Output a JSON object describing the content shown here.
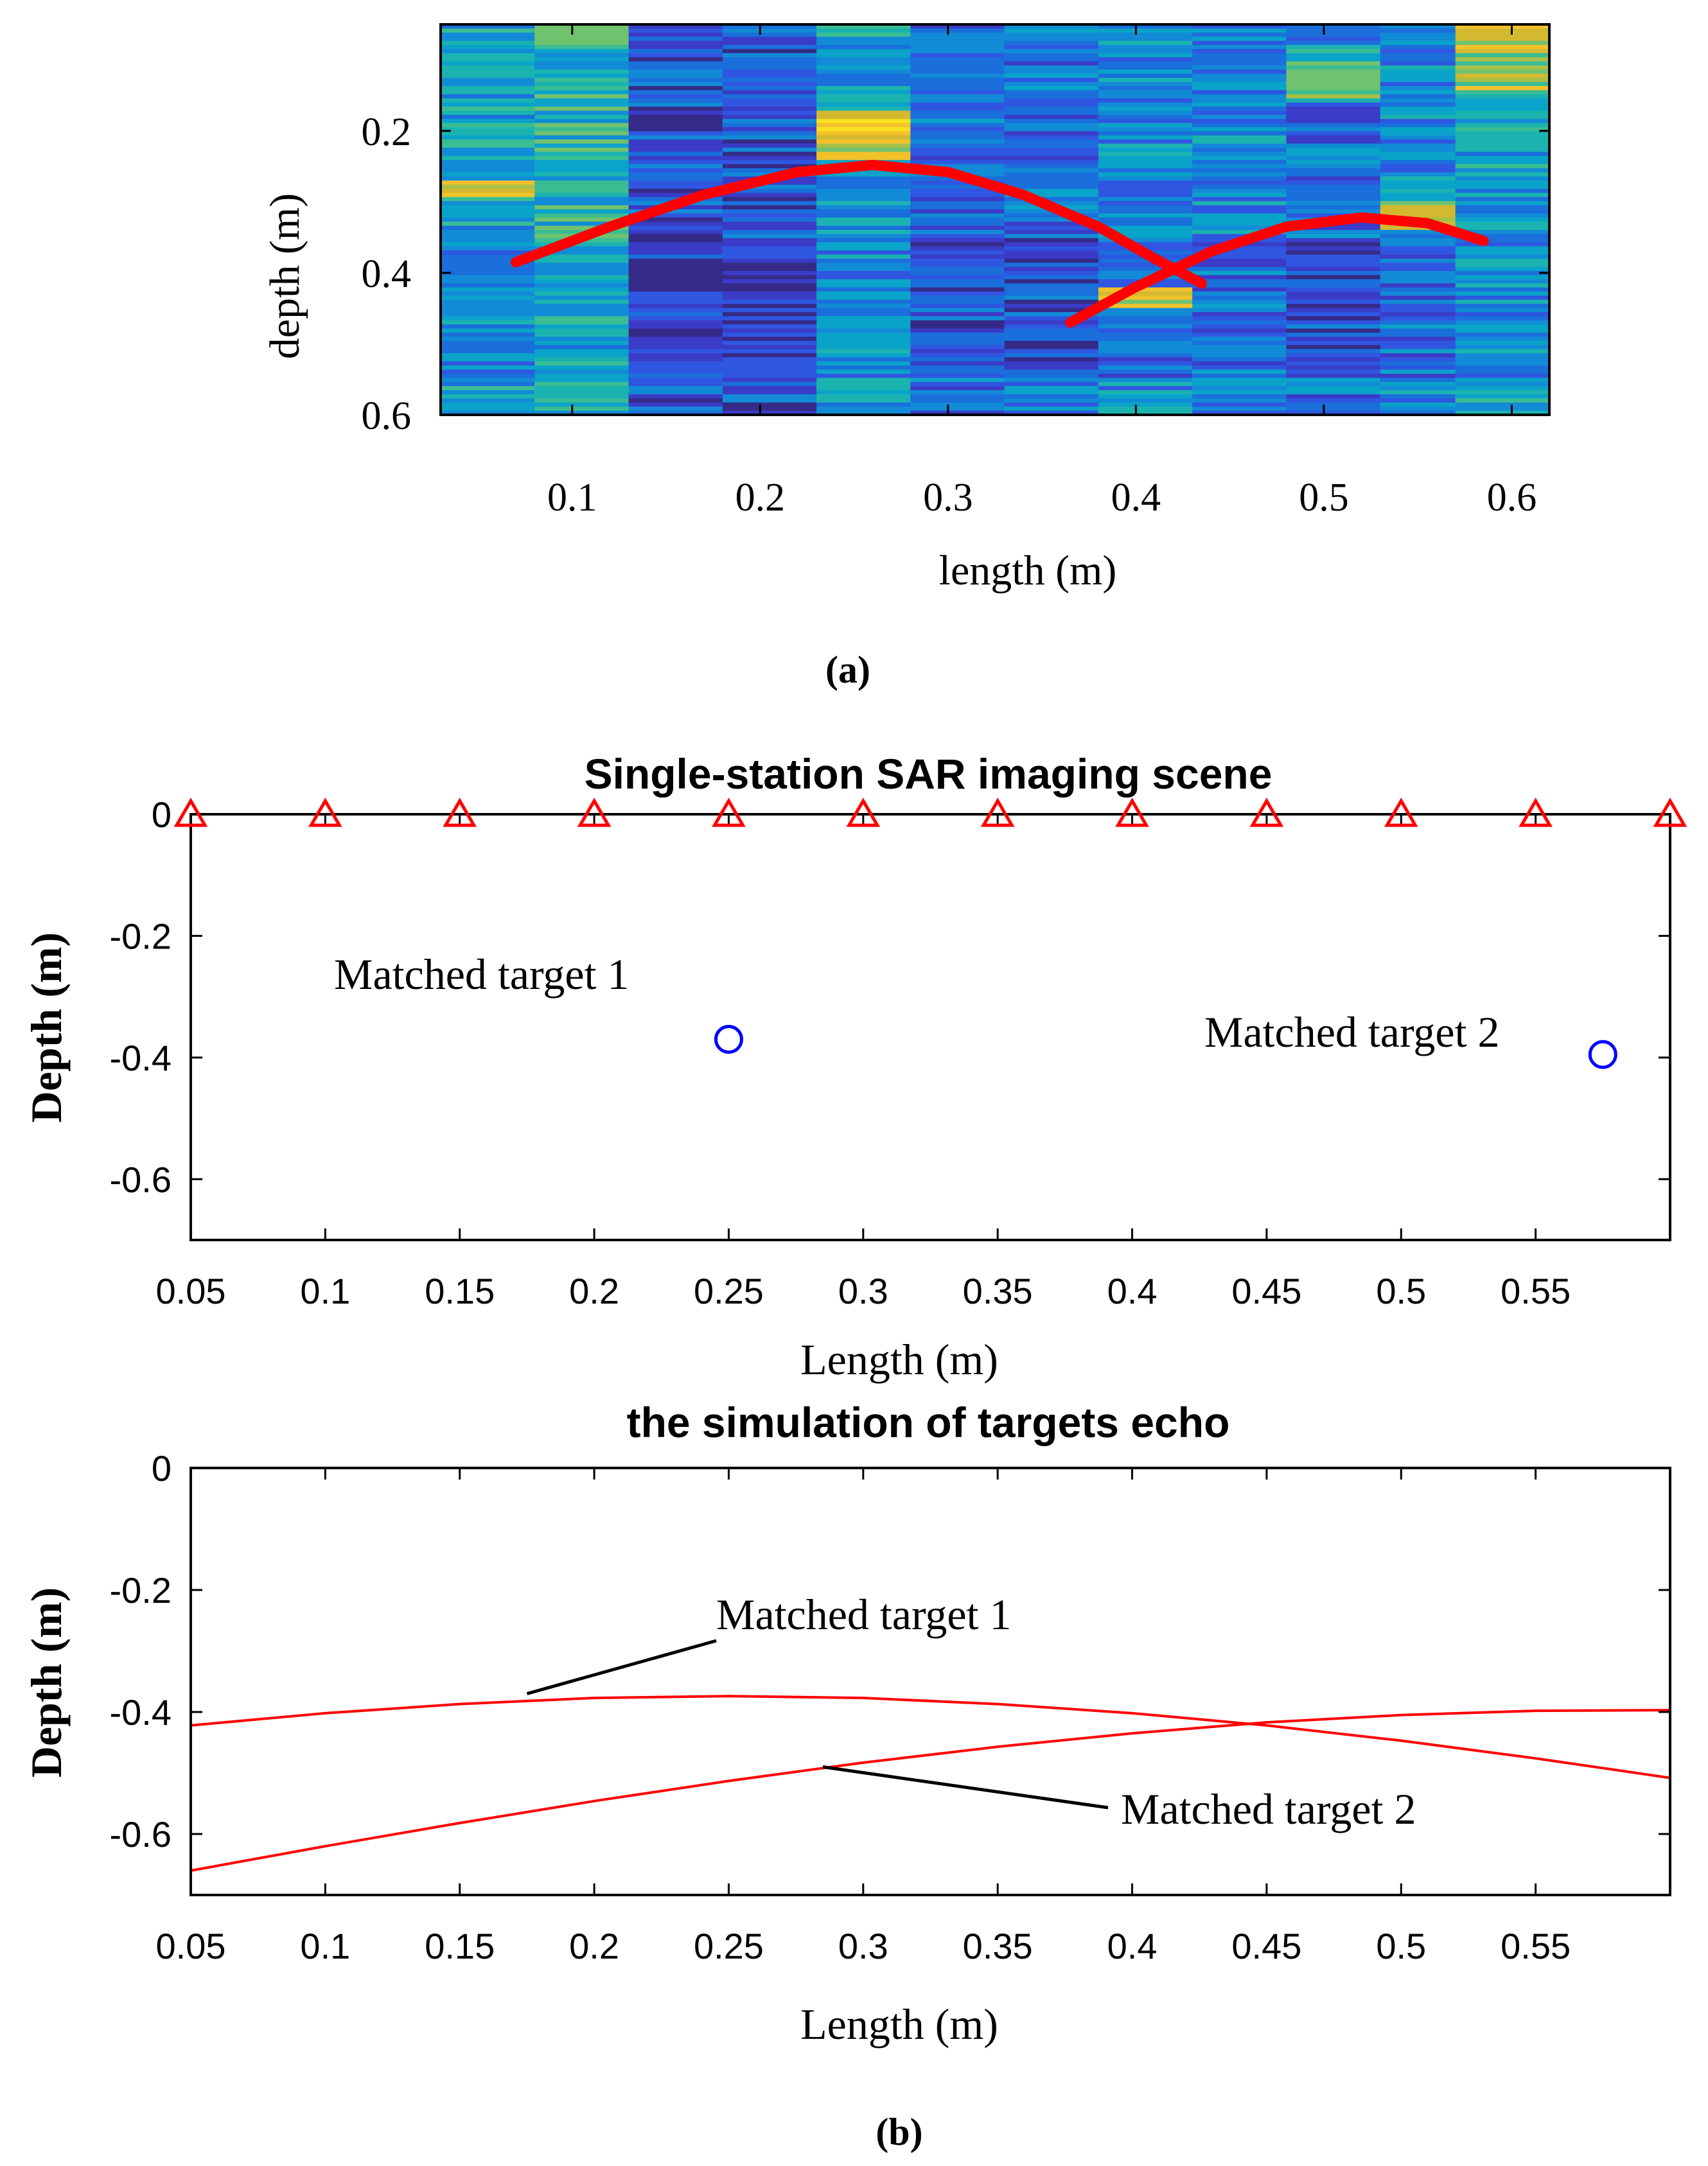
{
  "chart_data": [
    {
      "id": "panel-a",
      "type": "heatmap",
      "title": "",
      "panel_label": "(a)",
      "xlabel": "length (m)",
      "ylabel": "depth (m)",
      "xlim": [
        0.03,
        0.62
      ],
      "ylim": [
        0.6,
        0.05
      ],
      "x_ticks": [
        0.1,
        0.2,
        0.3,
        0.4,
        0.5,
        0.6
      ],
      "x_tick_labels": [
        "0.1",
        "0.2",
        "0.3",
        "0.4",
        "0.5",
        "0.6"
      ],
      "y_ticks": [
        0.2,
        0.4,
        0.6
      ],
      "y_tick_labels": [
        "0.2",
        "0.4",
        "0.6"
      ],
      "column_edges": [
        0.03,
        0.08,
        0.13,
        0.18,
        0.23,
        0.28,
        0.33,
        0.38,
        0.43,
        0.48,
        0.53,
        0.57,
        0.62
      ],
      "colormap": "parula",
      "overlay_curves": [
        {
          "name": "hyperbola-1",
          "color": "#ff0000",
          "x": [
            0.07,
            0.12,
            0.17,
            0.22,
            0.26,
            0.3,
            0.34,
            0.38,
            0.41,
            0.435
          ],
          "y": [
            0.385,
            0.335,
            0.29,
            0.258,
            0.248,
            0.258,
            0.29,
            0.335,
            0.38,
            0.415
          ]
        },
        {
          "name": "hyperbola-2",
          "color": "#ff0000",
          "x": [
            0.365,
            0.4,
            0.44,
            0.48,
            0.52,
            0.555,
            0.585
          ],
          "y": [
            0.47,
            0.42,
            0.37,
            0.335,
            0.322,
            0.33,
            0.355
          ]
        }
      ]
    },
    {
      "id": "panel-b-top",
      "type": "scatter",
      "title": "Single-station SAR imaging scene",
      "xlabel": "Length (m)",
      "ylabel": "Depth  (m)",
      "xlim": [
        0.05,
        0.6
      ],
      "ylim": [
        -0.7,
        0
      ],
      "x_ticks": [
        0.05,
        0.1,
        0.15,
        0.2,
        0.25,
        0.3,
        0.35,
        0.4,
        0.45,
        0.5,
        0.55
      ],
      "x_tick_labels": [
        "0.05",
        "0.1",
        "0.15",
        "0.2",
        "0.25",
        "0.3",
        "0.35",
        "0.4",
        "0.45",
        "0.5",
        "0.55"
      ],
      "y_ticks": [
        0,
        -0.2,
        -0.4,
        -0.6
      ],
      "y_tick_labels": [
        "0",
        "-0.2",
        "-0.4",
        "-0.6"
      ],
      "series": [
        {
          "name": "antenna positions",
          "marker": "triangle",
          "color": "#ff0000",
          "x": [
            0.05,
            0.1,
            0.15,
            0.2,
            0.25,
            0.3,
            0.35,
            0.4,
            0.45,
            0.5,
            0.55,
            0.6
          ],
          "y": [
            0,
            0,
            0,
            0,
            0,
            0,
            0,
            0,
            0,
            0,
            0,
            0
          ]
        },
        {
          "name": "targets",
          "marker": "circle",
          "color": "#0000ff",
          "x": [
            0.25,
            0.575
          ],
          "y": [
            -0.37,
            -0.395
          ]
        }
      ],
      "annotations": [
        {
          "text": "Matched target 1",
          "x": 0.17,
          "y": -0.25
        },
        {
          "text": "Matched target 2",
          "x": 0.49,
          "y": -0.355
        }
      ]
    },
    {
      "id": "panel-b-bottom",
      "type": "line",
      "title": "the simulation of targets echo",
      "panel_label": "(b)",
      "xlabel": "Length (m)",
      "ylabel": "Depth  (m)",
      "xlim": [
        0.05,
        0.6
      ],
      "ylim": [
        -0.7,
        0
      ],
      "x_ticks": [
        0.05,
        0.1,
        0.15,
        0.2,
        0.25,
        0.3,
        0.35,
        0.4,
        0.45,
        0.5,
        0.55
      ],
      "x_tick_labels": [
        "0.05",
        "0.1",
        "0.15",
        "0.2",
        "0.25",
        "0.3",
        "0.35",
        "0.4",
        "0.45",
        "0.5",
        "0.55"
      ],
      "y_ticks": [
        0,
        -0.2,
        -0.4,
        -0.6
      ],
      "y_tick_labels": [
        "0",
        "-0.2",
        "-0.4",
        "-0.6"
      ],
      "series": [
        {
          "name": "Matched target 1",
          "color": "#ff0000",
          "x": [
            0.05,
            0.1,
            0.15,
            0.2,
            0.25,
            0.3,
            0.35,
            0.4,
            0.45,
            0.5,
            0.55,
            0.6
          ],
          "y": [
            -0.422,
            -0.402,
            -0.387,
            -0.377,
            -0.374,
            -0.377,
            -0.387,
            -0.402,
            -0.422,
            -0.447,
            -0.476,
            -0.508
          ]
        },
        {
          "name": "Matched target 2",
          "color": "#ff0000",
          "x": [
            0.05,
            0.1,
            0.15,
            0.2,
            0.25,
            0.3,
            0.35,
            0.4,
            0.45,
            0.5,
            0.55,
            0.6
          ],
          "y": [
            -0.66,
            -0.62,
            -0.582,
            -0.546,
            -0.513,
            -0.483,
            -0.457,
            -0.435,
            -0.417,
            -0.405,
            -0.398,
            -0.397
          ]
        }
      ],
      "annotations": [
        {
          "text": "Matched target 1",
          "x": 0.25,
          "y": -0.25,
          "arrow_to": [
            0.175,
            -0.37
          ]
        },
        {
          "text": "Matched target 2",
          "x": 0.4,
          "y": -0.6,
          "arrow_to": [
            0.285,
            -0.49
          ]
        }
      ]
    }
  ]
}
